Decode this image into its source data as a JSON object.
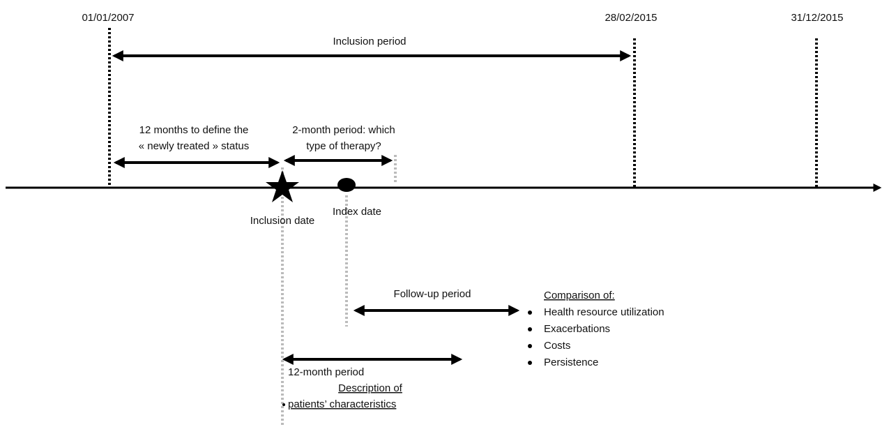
{
  "dates": [
    "01/01/2007",
    "28/02/2015",
    "31/12/2015"
  ],
  "inclusion_period": "Inclusion period",
  "newly_treated": {
    "line1": "12 months to define the",
    "line2": "« newly treated » status"
  },
  "two_month": {
    "line1": "2-month period: which",
    "line2": "type of therapy?"
  },
  "inclusion_date": "Inclusion date",
  "index_date": "Index date",
  "follow_up": "Follow-up period",
  "comparison": {
    "title": "Comparison of:",
    "items": [
      "Health resource utilization",
      "Exacerbations",
      "Costs",
      "Persistence"
    ]
  },
  "twelve_month": {
    "label": "12-month period",
    "title": "Description of",
    "item": "patients’ characteristics"
  }
}
